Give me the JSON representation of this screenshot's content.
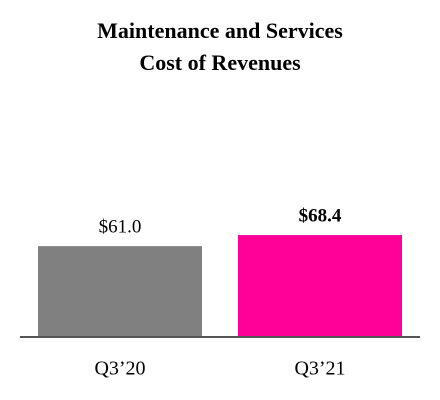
{
  "chart_data": {
    "type": "bar",
    "title": [
      "Maintenance and Services",
      "Cost of Revenues"
    ],
    "categories": [
      "Q3’20",
      "Q3’21"
    ],
    "values": [
      61.0,
      68.4
    ],
    "value_labels": [
      "$61.0",
      "$68.4"
    ],
    "colors": [
      "#808080",
      "#ff0099"
    ]
  }
}
